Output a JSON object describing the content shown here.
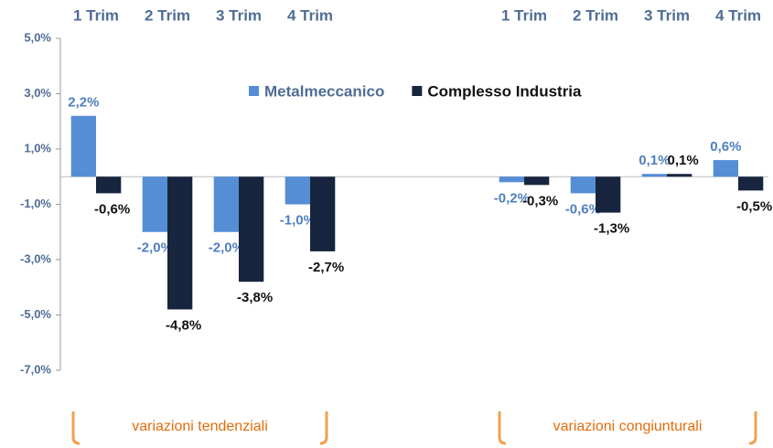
{
  "chart_data": {
    "type": "bar",
    "categories": [
      "1 Trim",
      "2 Trim",
      "3 Trim",
      "4 Trim",
      null,
      null,
      "1 Trim",
      "2 Trim",
      "3 Trim",
      "4 Trim"
    ],
    "series": [
      {
        "name": "Metalmeccanico",
        "color": "#558ed5",
        "values": [
          2.2,
          -2.0,
          -2.0,
          -1.0,
          null,
          null,
          -0.2,
          -0.6,
          0.1,
          0.6
        ],
        "value_labels": [
          "2,2%",
          "-2,0%",
          "-2,0%",
          "-1,0%",
          null,
          null,
          "-0,2%",
          "-0,6%",
          "0,1%",
          "0,6%"
        ]
      },
      {
        "name": "Complesso Industria",
        "color": "#17253f",
        "values": [
          -0.6,
          -4.8,
          -3.8,
          -2.7,
          null,
          null,
          -0.3,
          -1.3,
          0.1,
          -0.5
        ],
        "value_labels": [
          "-0,6%",
          "-4,8%",
          "-3,8%",
          "-2,7%",
          null,
          null,
          "-0,3%",
          "-1,3%",
          "0,1%",
          "-0,5%"
        ]
      }
    ],
    "ylim": [
      -7,
      5
    ],
    "yticks": [
      {
        "value": -7,
        "label": "-7,0%"
      },
      {
        "value": -5,
        "label": "-5,0%"
      },
      {
        "value": -3,
        "label": "-3,0%"
      },
      {
        "value": -1,
        "label": "-1,0%"
      },
      {
        "value": 1,
        "label": "1,0%"
      },
      {
        "value": 3,
        "label": "3,0%"
      },
      {
        "value": 5,
        "label": "5,0%"
      }
    ],
    "annotations": [
      "variazioni tendenziali",
      "variazioni congiunturali"
    ],
    "legend": "top"
  }
}
